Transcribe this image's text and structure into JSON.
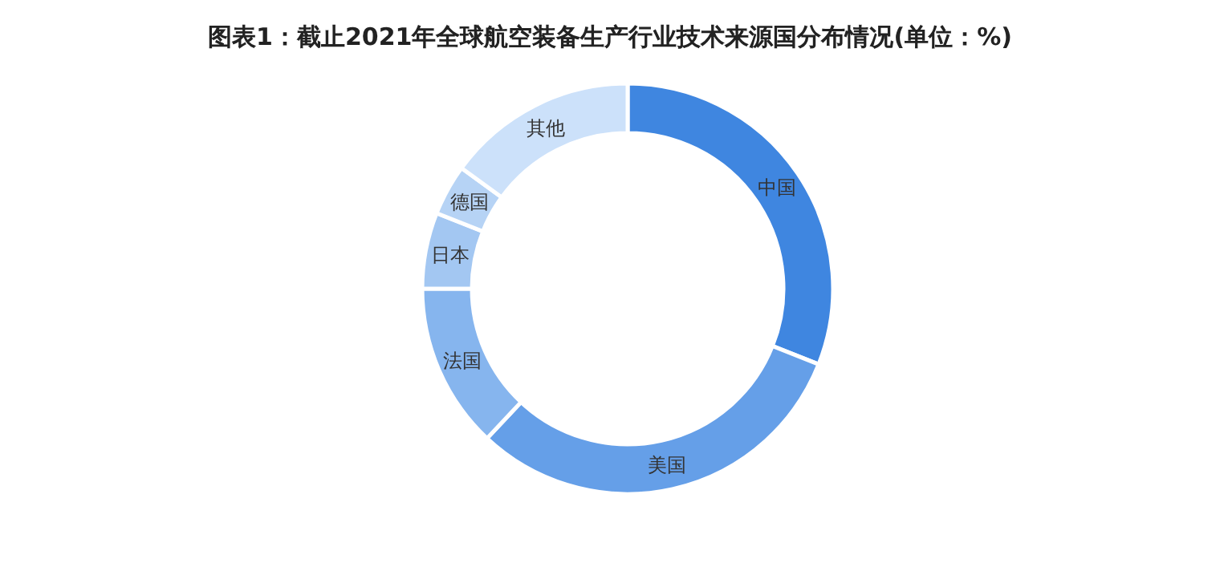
{
  "chart_data": {
    "type": "donut",
    "title": "图表1：截止2021年全球航空装备生产行业技术来源国分布情况(单位：%)",
    "categories": [
      "中国",
      "美国",
      "法国",
      "日本",
      "德国",
      "其他"
    ],
    "values": [
      31,
      31,
      13,
      6,
      4,
      15
    ],
    "colors": [
      "#3f86e0",
      "#659fe8",
      "#86b5ee",
      "#a3c7f2",
      "#b6d3f5",
      "#cce1fa"
    ],
    "legend": false
  }
}
